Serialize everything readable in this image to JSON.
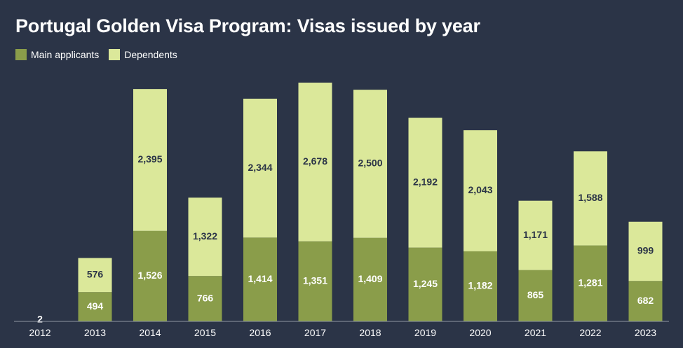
{
  "title": "Portugal Golden Visa Program: Visas issued by year",
  "colors": {
    "background": "#2b3447",
    "main": "#8a9d4a",
    "dependents": "#dbe89a",
    "axis": "#8f96a3"
  },
  "chart_data": {
    "type": "bar",
    "stacked": true,
    "title": "Portugal Golden Visa Program: Visas issued by year",
    "xlabel": "",
    "ylabel": "",
    "legend_position": "top-left",
    "grid": false,
    "categories": [
      "2012",
      "2013",
      "2014",
      "2015",
      "2016",
      "2017",
      "2018",
      "2019",
      "2020",
      "2021",
      "2022",
      "2023"
    ],
    "series": [
      {
        "name": "Main applicants",
        "values": [
          2,
          494,
          1526,
          766,
          1414,
          1351,
          1409,
          1245,
          1182,
          865,
          1281,
          682
        ],
        "labels": [
          "2",
          "494",
          "1,526",
          "766",
          "1,414",
          "1,351",
          "1,409",
          "1,245",
          "1,182",
          "865",
          "1,281",
          "682"
        ]
      },
      {
        "name": "Dependents",
        "values": [
          0,
          576,
          2395,
          1322,
          2344,
          2678,
          2500,
          2192,
          2043,
          1171,
          1588,
          999
        ],
        "labels": [
          "",
          "576",
          "2,395",
          "1,322",
          "2,344",
          "2,678",
          "2,500",
          "2,192",
          "2,043",
          "1,171",
          "1,588",
          "999"
        ]
      }
    ]
  }
}
